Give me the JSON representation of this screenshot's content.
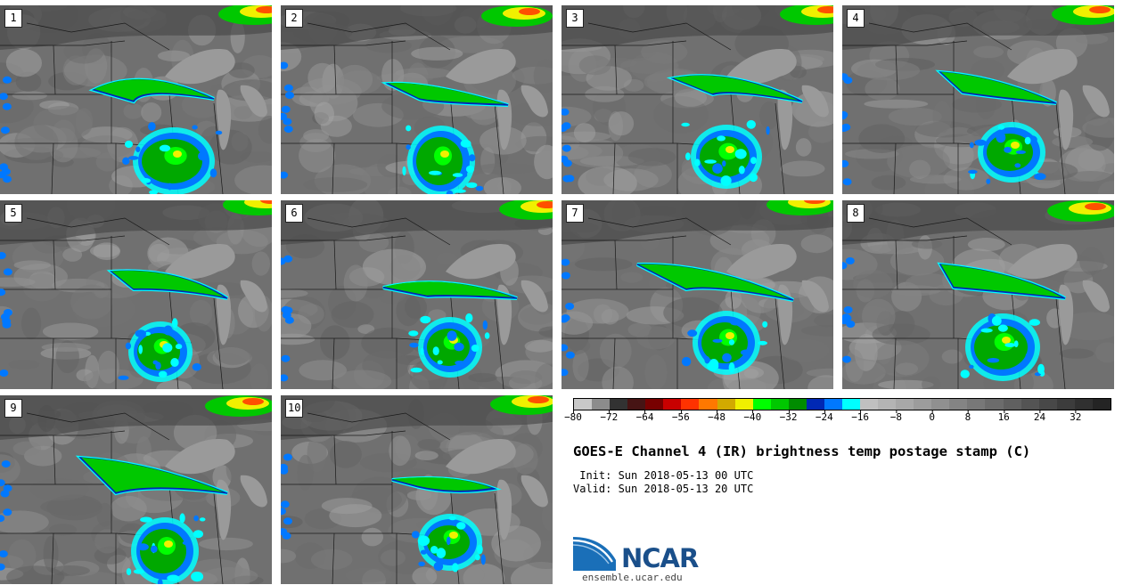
{
  "panels": [
    {
      "label": "1"
    },
    {
      "label": "2"
    },
    {
      "label": "3"
    },
    {
      "label": "4"
    },
    {
      "label": "5"
    },
    {
      "label": "6"
    },
    {
      "label": "7"
    },
    {
      "label": "8"
    },
    {
      "label": "9"
    },
    {
      "label": "10"
    }
  ],
  "colorbar": {
    "colors": [
      "#c8c8c8",
      "#8c8c8c",
      "#323232",
      "#461414",
      "#780000",
      "#c80000",
      "#ff3200",
      "#ff7800",
      "#d2aa00",
      "#f0f000",
      "#00ff00",
      "#00c800",
      "#008c00",
      "#0028b4",
      "#0078ff",
      "#00ffff",
      "#c0c0c0",
      "#b4b4b4",
      "#a8a8a8",
      "#9c9c9c",
      "#909090",
      "#848484",
      "#787878",
      "#6c6c6c",
      "#606060",
      "#545454",
      "#484848",
      "#3c3c3c",
      "#303030",
      "#242424"
    ],
    "ticks": [
      "−80",
      "−72",
      "−64",
      "−56",
      "−48",
      "−40",
      "−32",
      "−24",
      "−16",
      "−8",
      "0",
      "8",
      "16",
      "24",
      "32"
    ]
  },
  "title": "GOES-E Channel 4 (IR) brightness temp postage stamp (C)",
  "init": " Init: Sun 2018-05-13 00 UTC",
  "valid": "Valid: Sun 2018-05-13 20 UTC",
  "logo": {
    "text": "NCAR",
    "url": "ensemble.ucar.edu"
  }
}
